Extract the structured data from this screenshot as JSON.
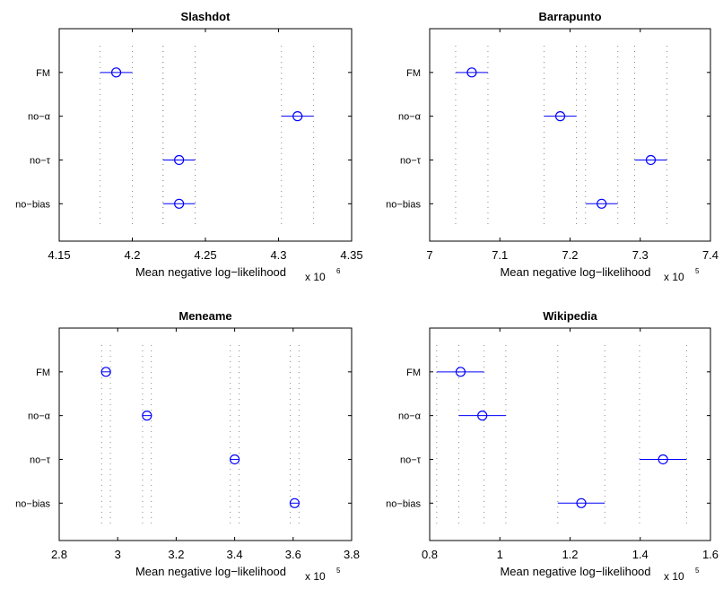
{
  "chart_data": [
    {
      "type": "scatter",
      "title": "Slashdot",
      "xlabel": "Mean negative log−likelihood",
      "multiplier_base": "x 10",
      "multiplier_exp": "6",
      "xlim": [
        4.15,
        4.35
      ],
      "xticks": [
        4.15,
        4.2,
        4.25,
        4.3,
        4.35
      ],
      "xtick_labels": [
        "4.15",
        "4.2",
        "4.25",
        "4.3",
        "4.35"
      ],
      "categories": [
        "FM",
        "no−α",
        "no−τ",
        "no−bias"
      ],
      "means": [
        4.189,
        4.313,
        4.232,
        4.232
      ],
      "err_low": [
        4.178,
        4.302,
        4.221,
        4.221
      ],
      "err_high": [
        4.2,
        4.324,
        4.243,
        4.243
      ],
      "grid": "dotted vertical lines at error bar ends",
      "marker_color": "#0000ff"
    },
    {
      "type": "scatter",
      "title": "Barrapunto",
      "xlabel": "Mean negative log−likelihood",
      "multiplier_base": "x 10",
      "multiplier_exp": "5",
      "xlim": [
        7.0,
        7.4
      ],
      "xticks": [
        7.0,
        7.1,
        7.2,
        7.3,
        7.4
      ],
      "xtick_labels": [
        "7",
        "7.1",
        "7.2",
        "7.3",
        "7.4"
      ],
      "categories": [
        "FM",
        "no−α",
        "no−τ",
        "no−bias"
      ],
      "means": [
        7.06,
        7.186,
        7.315,
        7.245
      ],
      "err_low": [
        7.037,
        7.163,
        7.292,
        7.222
      ],
      "err_high": [
        7.083,
        7.209,
        7.338,
        7.268
      ],
      "grid": "dotted vertical lines at error bar ends",
      "marker_color": "#0000ff"
    },
    {
      "type": "scatter",
      "title": "Meneame",
      "xlabel": "Mean negative log−likelihood",
      "multiplier_base": "x 10",
      "multiplier_exp": "5",
      "xlim": [
        2.8,
        3.8
      ],
      "xticks": [
        2.8,
        3.0,
        3.2,
        3.4,
        3.6,
        3.8
      ],
      "xtick_labels": [
        "2.8",
        "3",
        "3.2",
        "3.4",
        "3.6",
        "3.8"
      ],
      "categories": [
        "FM",
        "no−α",
        "no−τ",
        "no−bias"
      ],
      "means": [
        2.96,
        3.1,
        3.4,
        3.605
      ],
      "err_low": [
        2.945,
        3.085,
        3.385,
        3.59
      ],
      "err_high": [
        2.975,
        3.115,
        3.415,
        3.62
      ],
      "grid": "dotted vertical lines at error bar ends",
      "marker_color": "#0000ff"
    },
    {
      "type": "scatter",
      "title": "Wikipedia",
      "xlabel": "Mean negative log−likelihood",
      "multiplier_base": "x 10",
      "multiplier_exp": "5",
      "xlim": [
        0.8,
        1.6
      ],
      "xticks": [
        0.8,
        1.0,
        1.2,
        1.4,
        1.6
      ],
      "xtick_labels": [
        "0.8",
        "1",
        "1.2",
        "1.4",
        "1.6"
      ],
      "categories": [
        "FM",
        "no−α",
        "no−τ",
        "no−bias"
      ],
      "means": [
        0.888,
        0.95,
        1.465,
        1.232
      ],
      "err_low": [
        0.82,
        0.883,
        1.398,
        1.165
      ],
      "err_high": [
        0.955,
        1.017,
        1.532,
        1.299
      ],
      "grid": "dotted vertical lines at error bar ends",
      "marker_color": "#0000ff"
    }
  ]
}
